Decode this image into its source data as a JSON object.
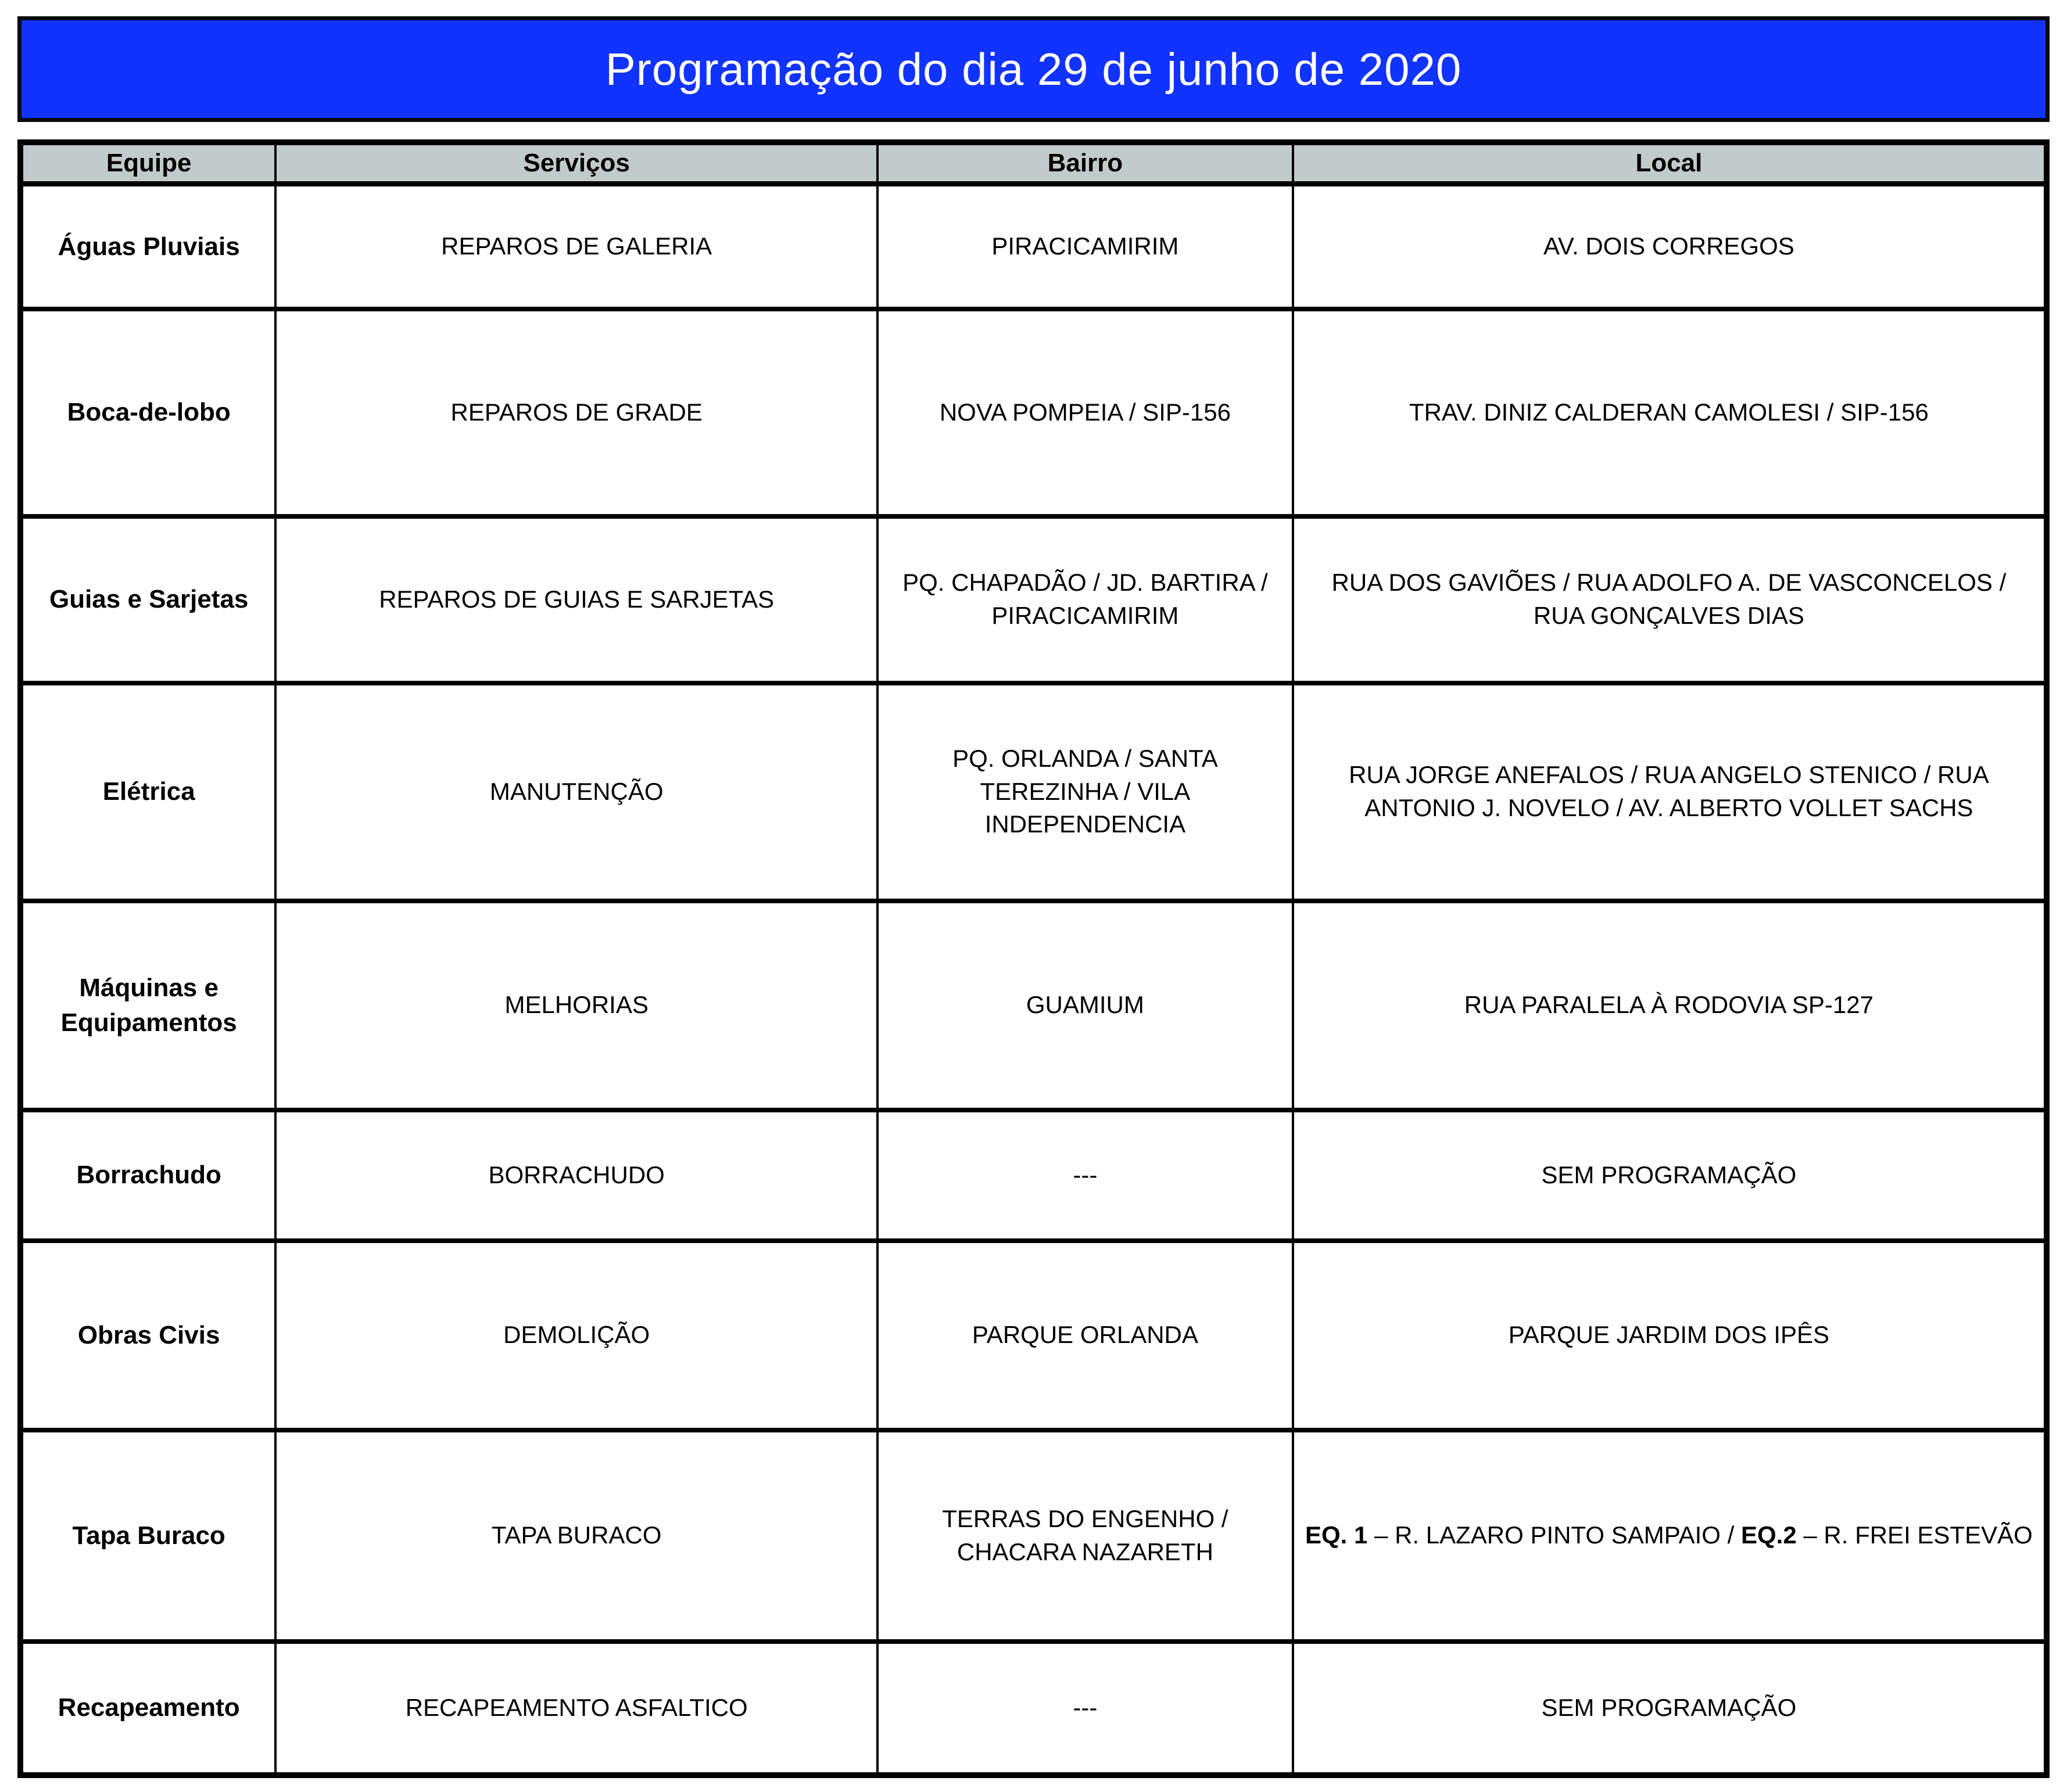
{
  "title": "Programação do dia 29 de junho de 2020",
  "colors": {
    "title_bg": "#1133FF",
    "title_text": "#FFFFFF",
    "header_bg": "#C0CBCA",
    "border": "#000000"
  },
  "table": {
    "columns": [
      "Equipe",
      "Serviços",
      "Bairro",
      "Local"
    ],
    "rows": [
      {
        "equipe": "Águas Pluviais",
        "servicos": "REPAROS DE GALERIA",
        "bairro": "PIRACICAMIRIM",
        "local": "AV. DOIS CORREGOS"
      },
      {
        "equipe": "Boca-de-lobo",
        "servicos": "REPAROS DE GRADE",
        "bairro": "NOVA POMPEIA / SIP-156",
        "local": "TRAV. DINIZ CALDERAN CAMOLESI / SIP-156"
      },
      {
        "equipe": "Guias e Sarjetas",
        "servicos": "REPAROS DE GUIAS E SARJETAS",
        "bairro": "PQ. CHAPADÃO / JD. BARTIRA / PIRACICAMIRIM",
        "local": "RUA DOS GAVIÕES / RUA ADOLFO A. DE VASCONCELOS / RUA GONÇALVES DIAS"
      },
      {
        "equipe": "Elétrica",
        "servicos": "MANUTENÇÃO",
        "bairro": "PQ. ORLANDA / SANTA TEREZINHA / VILA INDEPENDENCIA",
        "local": "RUA JORGE ANEFALOS / RUA ANGELO STENICO / RUA ANTONIO J. NOVELO / AV. ALBERTO VOLLET SACHS"
      },
      {
        "equipe": "Máquinas e Equipamentos",
        "servicos": "MELHORIAS",
        "bairro": "GUAMIUM",
        "local": "RUA PARALELA À RODOVIA SP-127"
      },
      {
        "equipe": "Borrachudo",
        "servicos": "BORRACHUDO",
        "bairro": "---",
        "local": "SEM PROGRAMAÇÃO"
      },
      {
        "equipe": "Obras Civis",
        "servicos": "DEMOLIÇÃO",
        "bairro": "PARQUE ORLANDA",
        "local": "PARQUE JARDIM DOS IPÊS"
      },
      {
        "equipe": "Tapa Buraco",
        "servicos": "TAPA BURACO",
        "bairro": "TERRAS DO ENGENHO / CHACARA NAZARETH",
        "local": [
          {
            "text": "EQ. 1",
            "bold": true
          },
          {
            "text": " – R. LAZARO PINTO SAMPAIO / ",
            "bold": false
          },
          {
            "text": "EQ.2",
            "bold": true
          },
          {
            "text": " – R. FREI ESTEVÃO",
            "bold": false
          }
        ]
      },
      {
        "equipe": "Recapeamento",
        "servicos": "RECAPEAMENTO ASFALTICO",
        "bairro": "---",
        "local": "SEM PROGRAMAÇÃO"
      }
    ]
  }
}
